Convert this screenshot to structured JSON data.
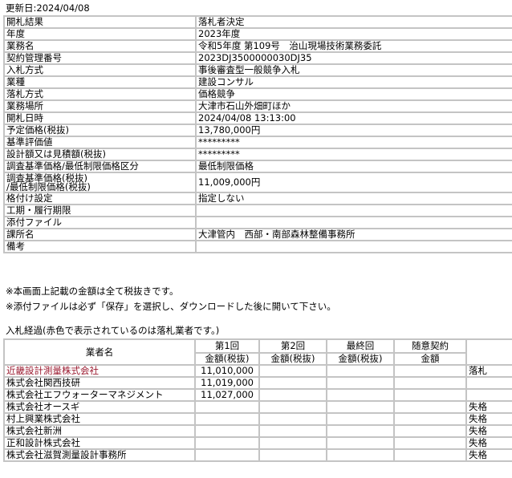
{
  "updated": "更新日:2024/04/08",
  "info": [
    {
      "label": "開札結果",
      "value": "落札者決定"
    },
    {
      "label": "年度",
      "value": "2023年度"
    },
    {
      "label": "業務名",
      "value": "令和5年度 第109号　治山現場技術業務委託"
    },
    {
      "label": "契約管理番号",
      "value": "2023DJ3500000030DJ35"
    },
    {
      "label": "入札方式",
      "value": "事後審査型一般競争入札"
    },
    {
      "label": "業種",
      "value": "建設コンサル"
    },
    {
      "label": "落札方式",
      "value": "価格競争"
    },
    {
      "label": "業務場所",
      "value": "大津市石山外畑町ほか"
    },
    {
      "label": "開札日時",
      "value": "2024/04/08 13:13:00"
    },
    {
      "label": "予定価格(税抜)",
      "value": "13,780,000円"
    },
    {
      "label": "基準評価値",
      "value": "*********"
    },
    {
      "label": "設計額又は見積額(税抜)",
      "value": "*********"
    },
    {
      "label": "調査基準価格/最低制限価格区分",
      "value": "最低制限価格"
    },
    {
      "label": "調査基準価格(税抜)",
      "label2": "/最低制限価格(税抜)",
      "value": "11,009,000円"
    },
    {
      "label": "格付け設定",
      "value": "指定しない"
    },
    {
      "label": "工期・履行期限",
      "value": ""
    },
    {
      "label": "添付ファイル",
      "value": ""
    },
    {
      "label": "課所名",
      "value": "大津管内　西部・南部森林整備事務所"
    },
    {
      "label": "備考",
      "value": ""
    }
  ],
  "notes": [
    "※本画面上記載の金額は全て税抜きです。",
    "※添付ファイルは必ず「保存」を選択し、ダウンロードした後に開いて下さい。"
  ],
  "bids_title": "入札経過(赤色で表示されているのは落札業者です。)",
  "bids_header": {
    "name": "業者名",
    "r1": "第1回",
    "r2": "第2回",
    "final": "最終回",
    "zuii": "随意契約",
    "sub_amount": "金額(税抜)",
    "sub_zuii": "金額"
  },
  "winner_color": "#9b1b30",
  "bids": [
    {
      "name": "近畿設計測量株式会社",
      "r1": "11,010,000",
      "result": "落札",
      "winner": true
    },
    {
      "name": "株式会社関西技研",
      "r1": "11,019,000",
      "result": ""
    },
    {
      "name": "株式会社エフウォーターマネジメント",
      "r1": "11,027,000",
      "result": ""
    },
    {
      "name": "株式会社オースギ",
      "r1": "",
      "result": "失格"
    },
    {
      "name": "村上興業株式会社",
      "r1": "",
      "result": "失格"
    },
    {
      "name": "株式会社新洲",
      "r1": "",
      "result": "失格"
    },
    {
      "name": "正和設計株式会社",
      "r1": "",
      "result": "失格"
    },
    {
      "name": "株式会社滋賀測量設計事務所",
      "r1": "",
      "result": "失格"
    }
  ]
}
